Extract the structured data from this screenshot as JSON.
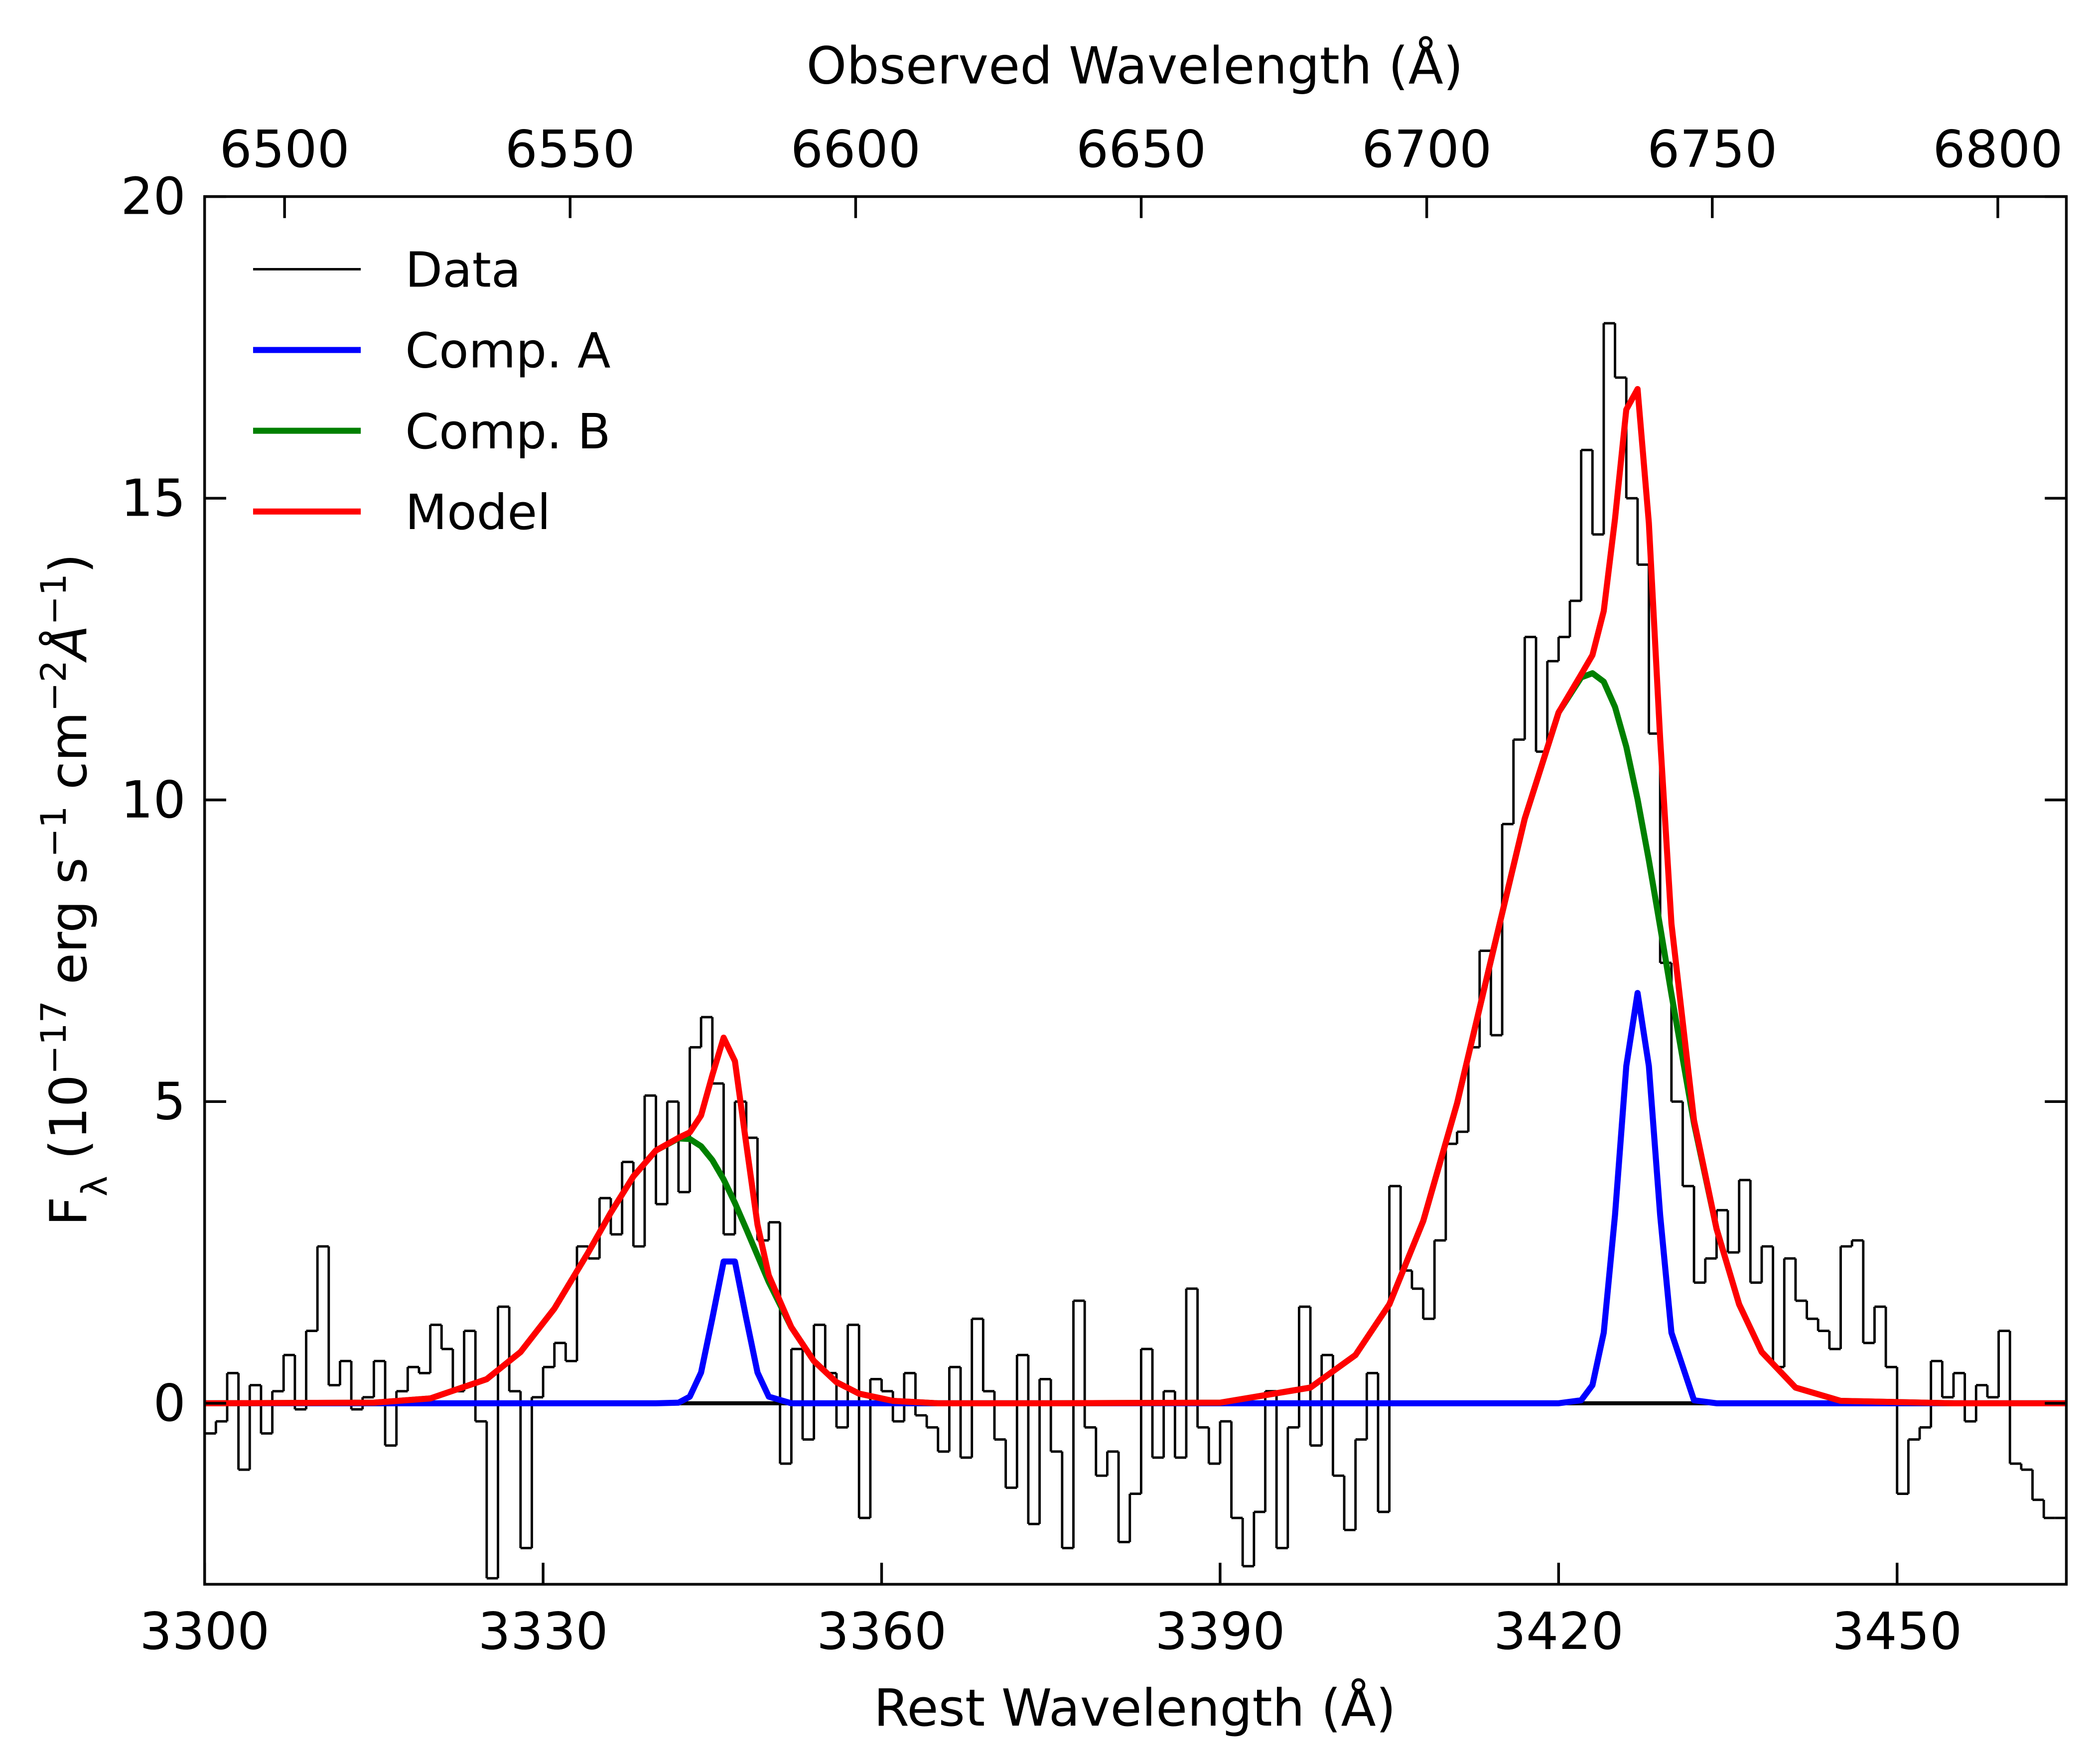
{
  "chart_data": {
    "type": "line",
    "xlabel": "Rest Wavelength (Å)",
    "x2label": "Observed Wavelength (Å)",
    "ylabel": [
      "F",
      "λ",
      " (10",
      "−17",
      " erg s",
      "−1",
      " cm",
      "−2",
      "Å",
      "−1",
      ")"
    ],
    "xlim": [
      3300,
      3465
    ],
    "xticks": [
      3300,
      3330,
      3360,
      3390,
      3420,
      3450
    ],
    "x2lim": [
      6486,
      6812
    ],
    "x2ticks": [
      6500,
      6550,
      6600,
      6650,
      6700,
      6750,
      6800
    ],
    "ylim": [
      -3,
      20
    ],
    "yticks": [
      0,
      5,
      10,
      15,
      20
    ],
    "hlines": [
      0
    ],
    "legend": "upper left",
    "series": [
      {
        "name": "Data",
        "color": "#000000",
        "step": true,
        "x": [
          3300,
          3301,
          3302,
          3303,
          3304,
          3305,
          3306,
          3307,
          3308,
          3309,
          3310,
          3311,
          3312,
          3313,
          3314,
          3315,
          3316,
          3317,
          3318,
          3319,
          3320,
          3321,
          3322,
          3323,
          3324,
          3325,
          3326,
          3327,
          3328,
          3329,
          3330,
          3331,
          3332,
          3333,
          3334,
          3335,
          3336,
          3337,
          3338,
          3339,
          3340,
          3341,
          3342,
          3343,
          3344,
          3345,
          3346,
          3347,
          3348,
          3349,
          3350,
          3351,
          3352,
          3353,
          3354,
          3355,
          3356,
          3357,
          3358,
          3359,
          3360,
          3361,
          3362,
          3363,
          3364,
          3365,
          3366,
          3367,
          3368,
          3369,
          3370,
          3371,
          3372,
          3373,
          3374,
          3375,
          3376,
          3377,
          3378,
          3379,
          3380,
          3381,
          3382,
          3383,
          3384,
          3385,
          3386,
          3387,
          3388,
          3389,
          3390,
          3391,
          3392,
          3393,
          3394,
          3395,
          3396,
          3397,
          3398,
          3399,
          3400,
          3401,
          3402,
          3403,
          3404,
          3405,
          3406,
          3407,
          3408,
          3409,
          3410,
          3411,
          3412,
          3413,
          3414,
          3415,
          3416,
          3417,
          3418,
          3419,
          3420,
          3421,
          3422,
          3423,
          3424,
          3425,
          3426,
          3427,
          3428,
          3429,
          3430,
          3431,
          3432,
          3433,
          3434,
          3435,
          3436,
          3437,
          3438,
          3439,
          3440,
          3441,
          3442,
          3443,
          3444,
          3445,
          3446,
          3447,
          3448,
          3449,
          3450,
          3451,
          3452,
          3453,
          3454,
          3455,
          3456,
          3457,
          3458,
          3459,
          3460,
          3461,
          3462,
          3463,
          3464
        ],
        "values": [
          -0.5,
          -0.3,
          0.5,
          -1.1,
          0.3,
          -0.5,
          0.2,
          0.8,
          -0.1,
          1.2,
          2.6,
          0.3,
          0.7,
          -0.1,
          0.1,
          0.7,
          -0.7,
          0.2,
          0.6,
          0.5,
          1.3,
          0.9,
          0.2,
          1.2,
          -0.3,
          -2.9,
          1.6,
          0.2,
          -2.4,
          0.1,
          0.6,
          1.0,
          0.7,
          2.6,
          2.4,
          3.4,
          2.8,
          4.0,
          2.6,
          5.1,
          3.3,
          5.0,
          3.5,
          5.9,
          6.4,
          5.3,
          2.8,
          5.0,
          4.4,
          2.7,
          3.0,
          -1.0,
          0.9,
          -0.6,
          1.3,
          0.5,
          -0.4,
          1.3,
          -1.9,
          0.4,
          0.2,
          -0.3,
          0.5,
          -0.2,
          -0.4,
          -0.8,
          0.6,
          -0.9,
          1.4,
          0.2,
          -0.6,
          -1.4,
          0.8,
          -2.0,
          0.4,
          -0.8,
          -2.4,
          1.7,
          -0.4,
          -1.2,
          -0.8,
          -2.3,
          -1.5,
          0.9,
          -0.9,
          0.2,
          -0.9,
          1.9,
          -0.4,
          -1.0,
          -0.3,
          -1.9,
          -2.7,
          -1.8,
          0.2,
          -2.4,
          -0.4,
          1.6,
          -0.7,
          0.8,
          -1.2,
          -2.1,
          -0.6,
          0.5,
          -1.8,
          3.6,
          2.2,
          1.9,
          1.4,
          2.7,
          4.3,
          4.5,
          5.9,
          7.5,
          6.1,
          9.6,
          11.0,
          12.7,
          10.8,
          12.3,
          12.7,
          13.3,
          15.8,
          14.4,
          17.9,
          17.0,
          15.0,
          13.9,
          11.1,
          7.3,
          5.0,
          3.6,
          2.0,
          2.4,
          3.2,
          2.5,
          3.7,
          2.0,
          2.6,
          0.6,
          2.4,
          1.7,
          1.4,
          1.2,
          0.9,
          2.6,
          2.7,
          1.0,
          1.6,
          0.6,
          -1.5,
          -0.6,
          -0.4,
          0.7,
          0.1,
          0.5,
          -0.3,
          0.3,
          0.1,
          1.2,
          -1.0,
          -1.1,
          -1.6,
          -1.9,
          -1.9
        ]
      },
      {
        "name": "Comp. A",
        "color": "#0000ff",
        "x": [
          3300,
          3315,
          3320,
          3325,
          3328,
          3331,
          3334,
          3336,
          3338,
          3340,
          3342,
          3343,
          3344,
          3345,
          3346,
          3347,
          3348,
          3349,
          3350,
          3352,
          3354,
          3356,
          3358,
          3361,
          3365,
          3375,
          3390,
          3398,
          3402,
          3405,
          3408,
          3411,
          3414,
          3417,
          3420,
          3422,
          3423,
          3424,
          3425,
          3426,
          3427,
          3428,
          3429,
          3430,
          3432,
          3434,
          3436,
          3438,
          3441,
          3445,
          3455,
          3465
        ],
        "values": [
          0,
          0,
          0,
          0,
          0,
          0,
          0,
          0,
          0,
          0,
          0.01,
          0.11,
          0.51,
          1.41,
          2.35,
          2.35,
          1.41,
          0.51,
          0.11,
          0,
          0,
          0,
          0,
          0,
          0,
          0,
          0,
          0,
          0,
          0,
          0,
          0,
          0,
          0,
          0,
          0.05,
          0.3,
          1.17,
          3.12,
          5.59,
          6.8,
          5.59,
          3.12,
          1.17,
          0.05,
          0,
          0,
          0,
          0,
          0,
          0,
          0
        ]
      },
      {
        "name": "Comp. B",
        "color": "#008000",
        "x": [
          3300,
          3315,
          3320,
          3325,
          3328,
          3331,
          3334,
          3336,
          3338,
          3340,
          3342,
          3343,
          3344,
          3345,
          3346,
          3347,
          3348,
          3349,
          3350,
          3352,
          3354,
          3356,
          3358,
          3361,
          3365,
          3375,
          3390,
          3398,
          3402,
          3405,
          3408,
          3411,
          3414,
          3417,
          3420,
          3422,
          3423,
          3424,
          3425,
          3426,
          3427,
          3428,
          3429,
          3430,
          3432,
          3434,
          3436,
          3438,
          3441,
          3445,
          3455,
          3465
        ],
        "values": [
          0,
          0.01,
          0.08,
          0.4,
          0.85,
          1.57,
          2.5,
          3.16,
          3.76,
          4.19,
          4.39,
          4.38,
          4.26,
          4.03,
          3.71,
          3.32,
          2.89,
          2.45,
          2.01,
          1.26,
          0.7,
          0.35,
          0.16,
          0.04,
          0,
          0,
          0.01,
          0.26,
          0.8,
          1.64,
          3.02,
          4.97,
          7.34,
          9.69,
          11.45,
          12.03,
          12.1,
          11.96,
          11.54,
          10.88,
          10.01,
          9.0,
          7.9,
          6.78,
          4.64,
          2.89,
          1.64,
          0.85,
          0.26,
          0.04,
          0,
          0
        ]
      },
      {
        "name": "Model",
        "color": "#ff0000",
        "x": [
          3300,
          3315,
          3320,
          3325,
          3328,
          3331,
          3334,
          3336,
          3338,
          3340,
          3342,
          3343,
          3344,
          3345,
          3346,
          3347,
          3348,
          3349,
          3350,
          3352,
          3354,
          3356,
          3358,
          3361,
          3365,
          3375,
          3390,
          3398,
          3402,
          3405,
          3408,
          3411,
          3414,
          3417,
          3420,
          3422,
          3423,
          3424,
          3425,
          3426,
          3427,
          3428,
          3429,
          3430,
          3432,
          3434,
          3436,
          3438,
          3441,
          3445,
          3455,
          3465
        ],
        "values": [
          0,
          0.01,
          0.08,
          0.4,
          0.85,
          1.57,
          2.5,
          3.16,
          3.76,
          4.19,
          4.4,
          4.49,
          4.77,
          5.44,
          6.06,
          5.67,
          4.3,
          2.96,
          2.12,
          1.26,
          0.7,
          0.35,
          0.16,
          0.04,
          0,
          0,
          0.01,
          0.26,
          0.8,
          1.64,
          3.02,
          4.97,
          7.34,
          9.69,
          11.45,
          12.08,
          12.4,
          13.13,
          14.66,
          16.47,
          16.81,
          14.59,
          11.02,
          7.95,
          4.69,
          2.89,
          1.64,
          0.85,
          0.26,
          0.04,
          0,
          0
        ]
      }
    ]
  }
}
